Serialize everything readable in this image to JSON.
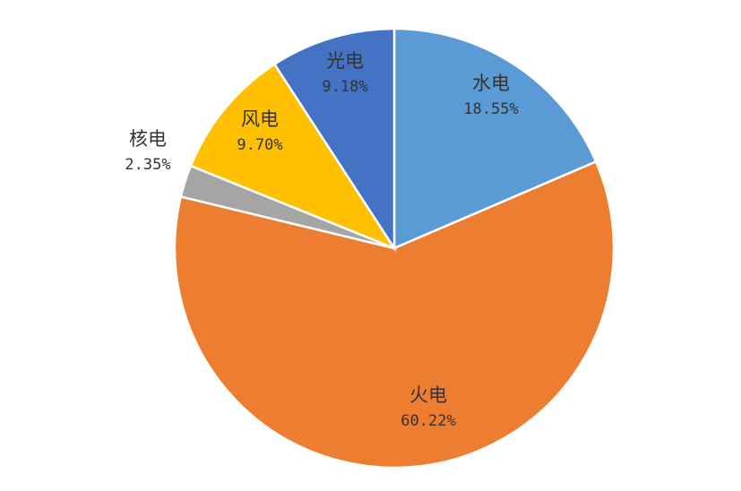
{
  "chart_data": {
    "type": "pie",
    "title": "",
    "slices": [
      {
        "label": "水电",
        "value": 18.55,
        "value_label": "18.55%",
        "color": "#5B9BD5"
      },
      {
        "label": "火电",
        "value": 60.22,
        "value_label": "60.22%",
        "color": "#ED7D31"
      },
      {
        "label": "核电",
        "value": 2.35,
        "value_label": "2.35%",
        "color": "#A5A5A5"
      },
      {
        "label": "风电",
        "value": 9.7,
        "value_label": "9.70%",
        "color": "#FFC000"
      },
      {
        "label": "光电",
        "value": 9.18,
        "value_label": "9.18%",
        "color": "#4472C4"
      }
    ],
    "start_angle_deg": 0,
    "direction": "clockwise",
    "legend": "none"
  }
}
